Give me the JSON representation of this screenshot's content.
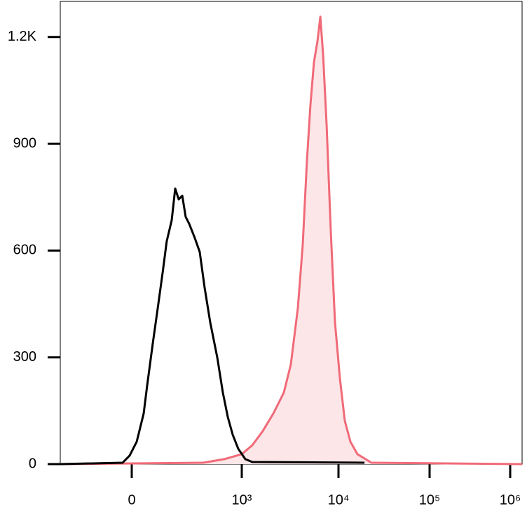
{
  "chart_data": {
    "type": "line",
    "x_scale": "biexponential",
    "xlim": [
      -650,
      1400000
    ],
    "xticks": [
      0,
      {
        "value": 1000,
        "label": "10³"
      },
      {
        "value": 10000,
        "label": "10⁴"
      },
      {
        "value": 100000,
        "label": "10⁵"
      },
      {
        "value": 1000000,
        "label": "10⁶"
      }
    ],
    "ylim": [
      0,
      1300
    ],
    "yticks": [
      0,
      300,
      600,
      900,
      {
        "value": 1200,
        "label": "1.2K"
      }
    ],
    "series": [
      {
        "color": "#f06a78",
        "fill": "#fde6e8",
        "x": [
          -650,
          650,
          841,
          1000,
          1284,
          1649,
          2119,
          2721,
          3216,
          3800,
          4270,
          4716,
          5128,
          5573,
          6063,
          6494,
          6936,
          7541,
          8325,
          9197,
          10360,
          11730,
          13510,
          16130,
          23000,
          1400000
        ],
        "values": [
          0,
          4,
          14,
          28,
          53,
          93,
          142,
          201,
          280,
          438,
          616,
          853,
          1010,
          1129,
          1188,
          1257,
          1149,
          951,
          655,
          399,
          241,
          122,
          63,
          28,
          4,
          0
        ]
      },
      {
        "color": "#000000",
        "x": [
          -650,
          -83,
          -19,
          45,
          108,
          140,
          191,
          236,
          280,
          318,
          363,
          395,
          427,
          459,
          490,
          522,
          573,
          618,
          662,
          713,
          777,
          828,
          873,
          917,
          968,
          1087,
          1284,
          19280
        ],
        "values": [
          0,
          4,
          24,
          63,
          142,
          221,
          339,
          438,
          537,
          626,
          685,
          774,
          744,
          754,
          695,
          675,
          635,
          596,
          497,
          399,
          300,
          201,
          132,
          83,
          43,
          14,
          6,
          4
        ]
      }
    ]
  }
}
